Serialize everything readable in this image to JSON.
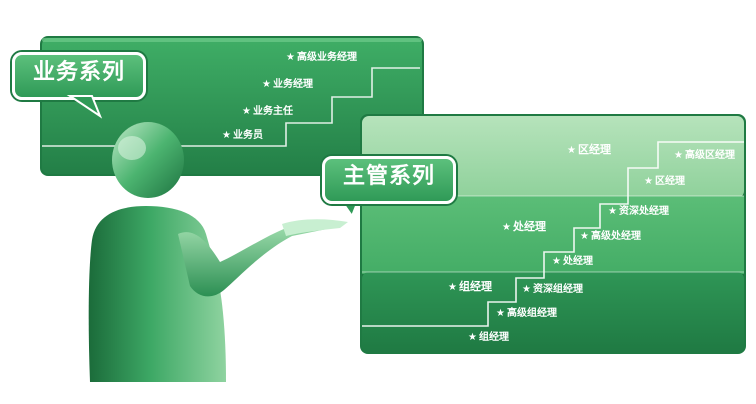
{
  "colors": {
    "dark_green": "#1f7a43",
    "mid_green": "#3aa862",
    "light_green": "#7ccc8e",
    "lighter_green": "#a8dcae"
  },
  "icons": {
    "star": "★"
  },
  "business": {
    "title": "业务系列",
    "levels": [
      {
        "label": "业务员"
      },
      {
        "label": "业务主任"
      },
      {
        "label": "业务经理"
      },
      {
        "label": "高级业务经理"
      }
    ]
  },
  "management": {
    "title": "主管系列",
    "tiers": [
      {
        "name": "组经理",
        "levels": [
          "组经理",
          "高级组经理",
          "资深组经理"
        ]
      },
      {
        "name": "处经理",
        "levels": [
          "处经理",
          "高级处经理",
          "资深处经理"
        ]
      },
      {
        "name": "区经理",
        "levels": [
          "区经理",
          "高级区经理"
        ]
      }
    ]
  }
}
